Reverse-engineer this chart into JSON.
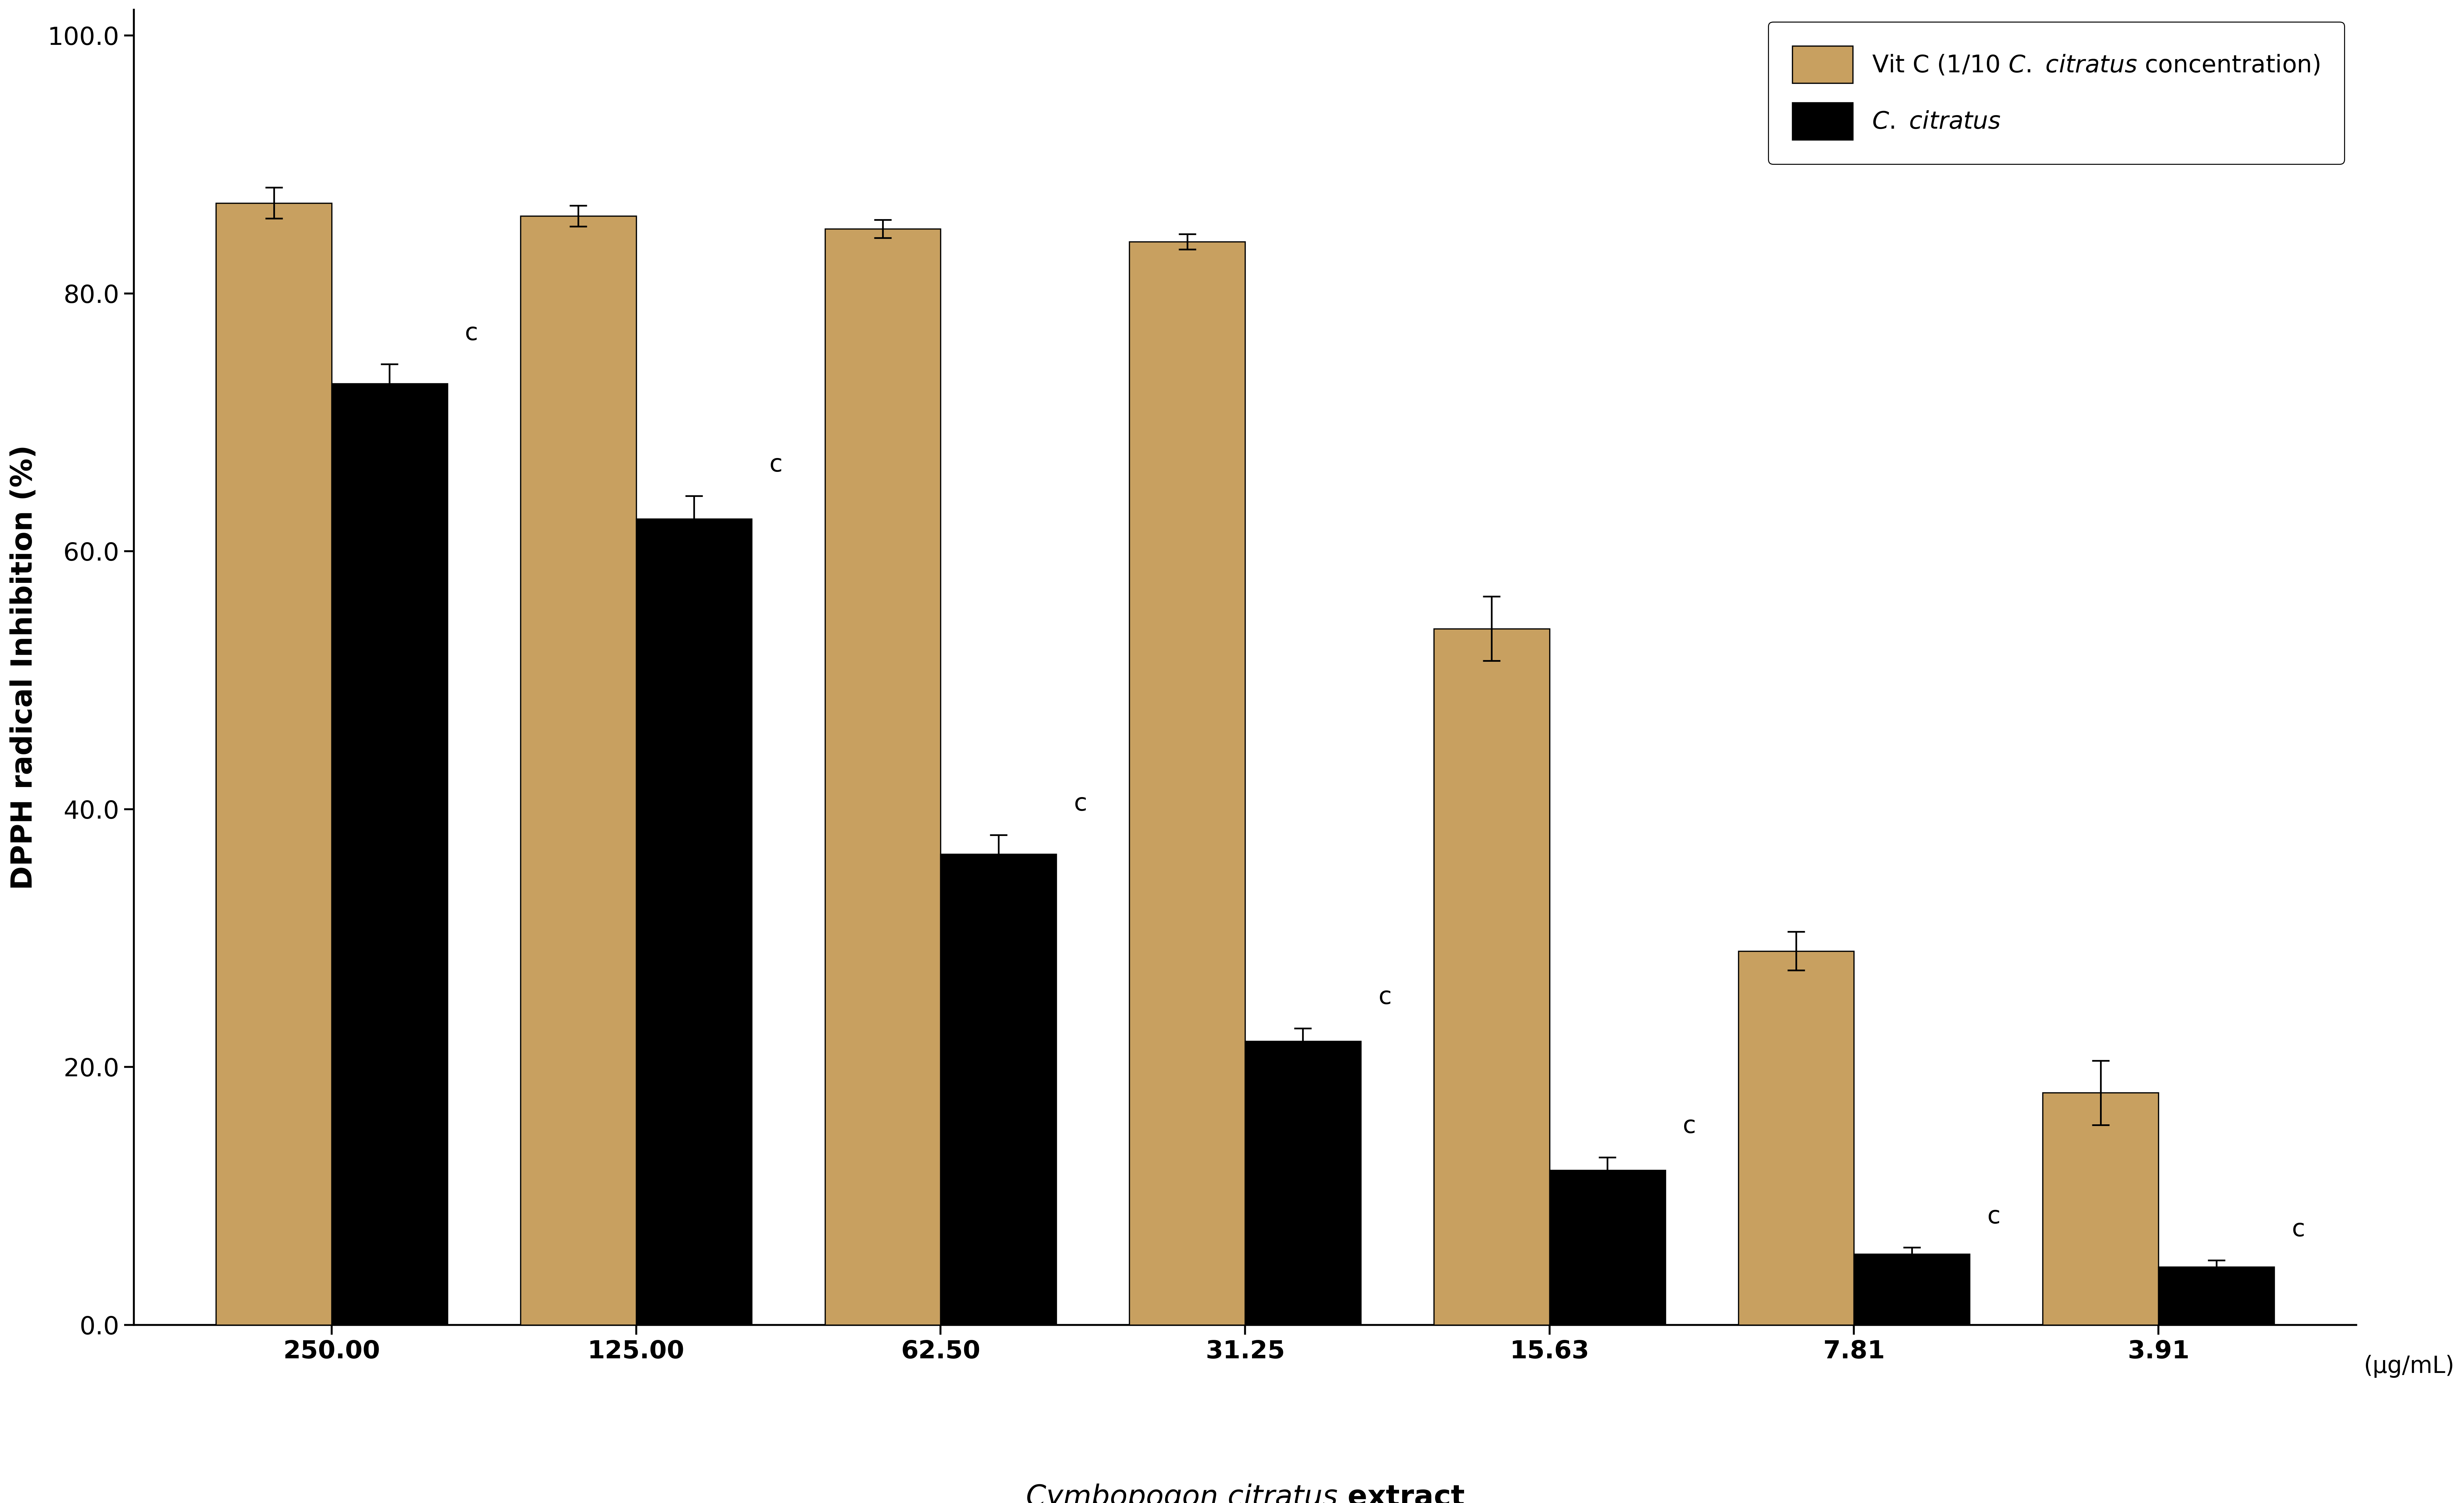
{
  "categories": [
    "250.00",
    "125.00",
    "62.50",
    "31.25",
    "15.63",
    "7.81",
    "3.91"
  ],
  "vitc_values": [
    87.0,
    86.0,
    85.0,
    84.0,
    54.0,
    29.0,
    18.0
  ],
  "vitc_errors": [
    1.2,
    0.8,
    0.7,
    0.6,
    2.5,
    1.5,
    2.5
  ],
  "cc_values": [
    73.0,
    62.5,
    36.5,
    22.0,
    12.0,
    5.5,
    4.5
  ],
  "cc_errors": [
    1.5,
    1.8,
    1.5,
    1.0,
    1.0,
    0.5,
    0.5
  ],
  "vitc_color": "#C8A060",
  "cc_color": "#2A8B8B",
  "ylabel": "DPPH radical Inhibition (%)",
  "unit_label": "(µg/mL)",
  "ylim": [
    0,
    102
  ],
  "yticks": [
    0.0,
    20.0,
    40.0,
    60.0,
    80.0,
    100.0
  ],
  "bar_width": 0.38,
  "annotation_letter": "c",
  "tick_fontsize": 52,
  "label_fontsize": 60,
  "legend_fontsize": 50,
  "annotation_fontsize": 50,
  "unit_fontsize": 48,
  "spine_linewidth": 4,
  "bar_edge_linewidth": 2.5,
  "error_linewidth": 3.5,
  "capsize": 18,
  "hatch_linewidth": 6.0,
  "figwidth": 70.87,
  "figheight": 43.22,
  "dpi": 100
}
